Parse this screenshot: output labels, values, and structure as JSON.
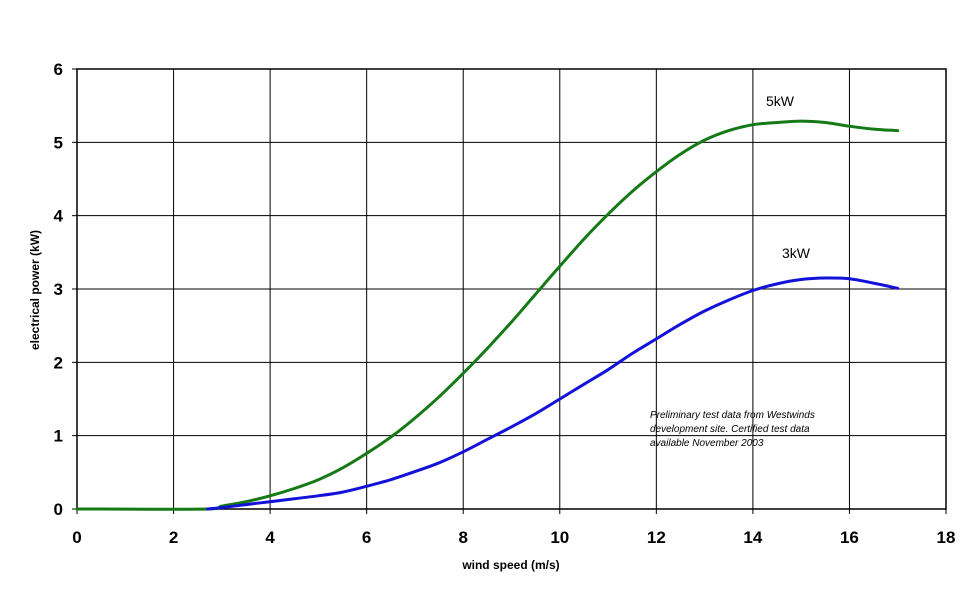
{
  "chart_data": {
    "type": "line",
    "title": "",
    "xlabel": "wind speed (m/s)",
    "ylabel": "electrical power (kW)",
    "xlim": [
      0,
      18
    ],
    "ylim": [
      0,
      6
    ],
    "x_ticks": [
      0,
      2,
      4,
      6,
      8,
      10,
      12,
      14,
      16,
      18
    ],
    "y_ticks": [
      0,
      1,
      2,
      3,
      4,
      5,
      6
    ],
    "grid": true,
    "legend": "none",
    "note_lines": [
      "Preliminary test data from Westwinds",
      "development site. Certified test data",
      "available November 2003"
    ],
    "series": [
      {
        "name": "5kW",
        "color": "#157A15",
        "x": [
          0,
          0.5,
          2.7,
          3,
          3.5,
          4,
          4.5,
          5,
          5.5,
          6,
          6.5,
          7,
          7.5,
          8,
          8.5,
          9,
          9.5,
          10,
          10.5,
          11,
          11.5,
          12,
          12.5,
          13,
          13.5,
          14,
          14.5,
          15,
          15.5,
          16,
          16.5,
          17
        ],
        "y": [
          0,
          0,
          0,
          0.04,
          0.1,
          0.18,
          0.28,
          0.4,
          0.56,
          0.76,
          0.98,
          1.24,
          1.53,
          1.85,
          2.19,
          2.55,
          2.93,
          3.31,
          3.68,
          4.02,
          4.33,
          4.6,
          4.84,
          5.03,
          5.16,
          5.24,
          5.27,
          5.29,
          5.27,
          5.22,
          5.18,
          5.16
        ]
      },
      {
        "name": "3kW",
        "color": "#1212D8",
        "x": [
          2.7,
          3,
          3.5,
          4,
          4.5,
          5,
          5.5,
          6,
          6.5,
          7,
          7.5,
          8,
          8.5,
          9,
          9.5,
          10,
          10.5,
          11,
          11.5,
          12,
          12.5,
          13,
          13.5,
          14,
          14.5,
          15,
          15.5,
          16,
          16.5,
          17
        ],
        "y": [
          0,
          0.02,
          0.06,
          0.1,
          0.14,
          0.18,
          0.23,
          0.31,
          0.4,
          0.51,
          0.63,
          0.78,
          0.95,
          1.12,
          1.3,
          1.5,
          1.7,
          1.9,
          2.12,
          2.32,
          2.52,
          2.7,
          2.85,
          2.98,
          3.07,
          3.13,
          3.15,
          3.14,
          3.08,
          3.01
        ]
      }
    ]
  }
}
